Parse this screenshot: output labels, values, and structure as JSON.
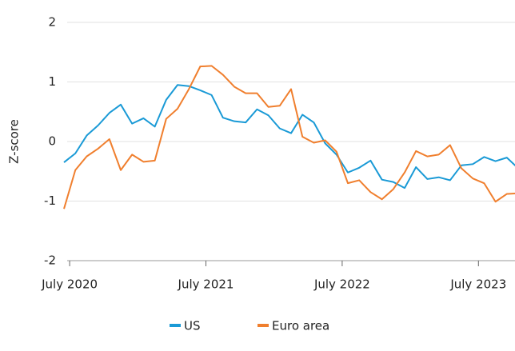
{
  "chart_data": {
    "type": "line",
    "y_label": "Z-score",
    "x": [
      "2020-06",
      "2020-07",
      "2020-08",
      "2020-09",
      "2020-10",
      "2020-11",
      "2020-12",
      "2021-01",
      "2021-02",
      "2021-03",
      "2021-04",
      "2021-05",
      "2021-06",
      "2021-07",
      "2021-08",
      "2021-09",
      "2021-10",
      "2021-11",
      "2021-12",
      "2022-01",
      "2022-02",
      "2022-03",
      "2022-04",
      "2022-05",
      "2022-06",
      "2022-07",
      "2022-08",
      "2022-09",
      "2022-10",
      "2022-11",
      "2022-12",
      "2023-01",
      "2023-02",
      "2023-03",
      "2023-04",
      "2023-05",
      "2023-06",
      "2023-07",
      "2023-08",
      "2023-09",
      "2023-10"
    ],
    "series": [
      {
        "name": "US",
        "color": "#1a9ad6",
        "values": [
          -0.35,
          -0.2,
          0.1,
          0.27,
          0.48,
          0.62,
          0.3,
          0.39,
          0.25,
          0.7,
          0.95,
          0.93,
          0.86,
          0.78,
          0.4,
          0.34,
          0.32,
          0.54,
          0.44,
          0.22,
          0.14,
          0.45,
          0.32,
          -0.03,
          -0.22,
          -0.52,
          -0.44,
          -0.32,
          -0.64,
          -0.68,
          -0.78,
          -0.43,
          -0.63,
          -0.6,
          -0.65,
          -0.4,
          -0.38,
          -0.26,
          -0.33,
          -0.27,
          -0.45
        ]
      },
      {
        "name": "Euro area",
        "color": "#f07f2e",
        "values": [
          -1.13,
          -0.48,
          -0.25,
          -0.12,
          0.04,
          -0.48,
          -0.22,
          -0.34,
          -0.32,
          0.38,
          0.55,
          0.88,
          1.26,
          1.27,
          1.12,
          0.92,
          0.81,
          0.81,
          0.58,
          0.6,
          0.88,
          0.08,
          -0.02,
          0.02,
          -0.17,
          -0.7,
          -0.65,
          -0.85,
          -0.97,
          -0.8,
          -0.52,
          -0.16,
          -0.25,
          -0.22,
          -0.06,
          -0.45,
          -0.62,
          -0.7,
          -1.01,
          -0.88,
          -0.87
        ]
      }
    ],
    "xlim": [
      "2020-06",
      "2023-10"
    ],
    "xticks": [
      {
        "value": "2020-07",
        "label": "July 2020"
      },
      {
        "value": "2021-07",
        "label": "July 2021"
      },
      {
        "value": "2022-07",
        "label": "July 2022"
      },
      {
        "value": "2023-07",
        "label": "July 2023"
      }
    ],
    "ylim": [
      -2,
      2
    ],
    "yticks": [
      -2,
      -1,
      0,
      1,
      2
    ],
    "grid": true,
    "legend": "bottom"
  }
}
